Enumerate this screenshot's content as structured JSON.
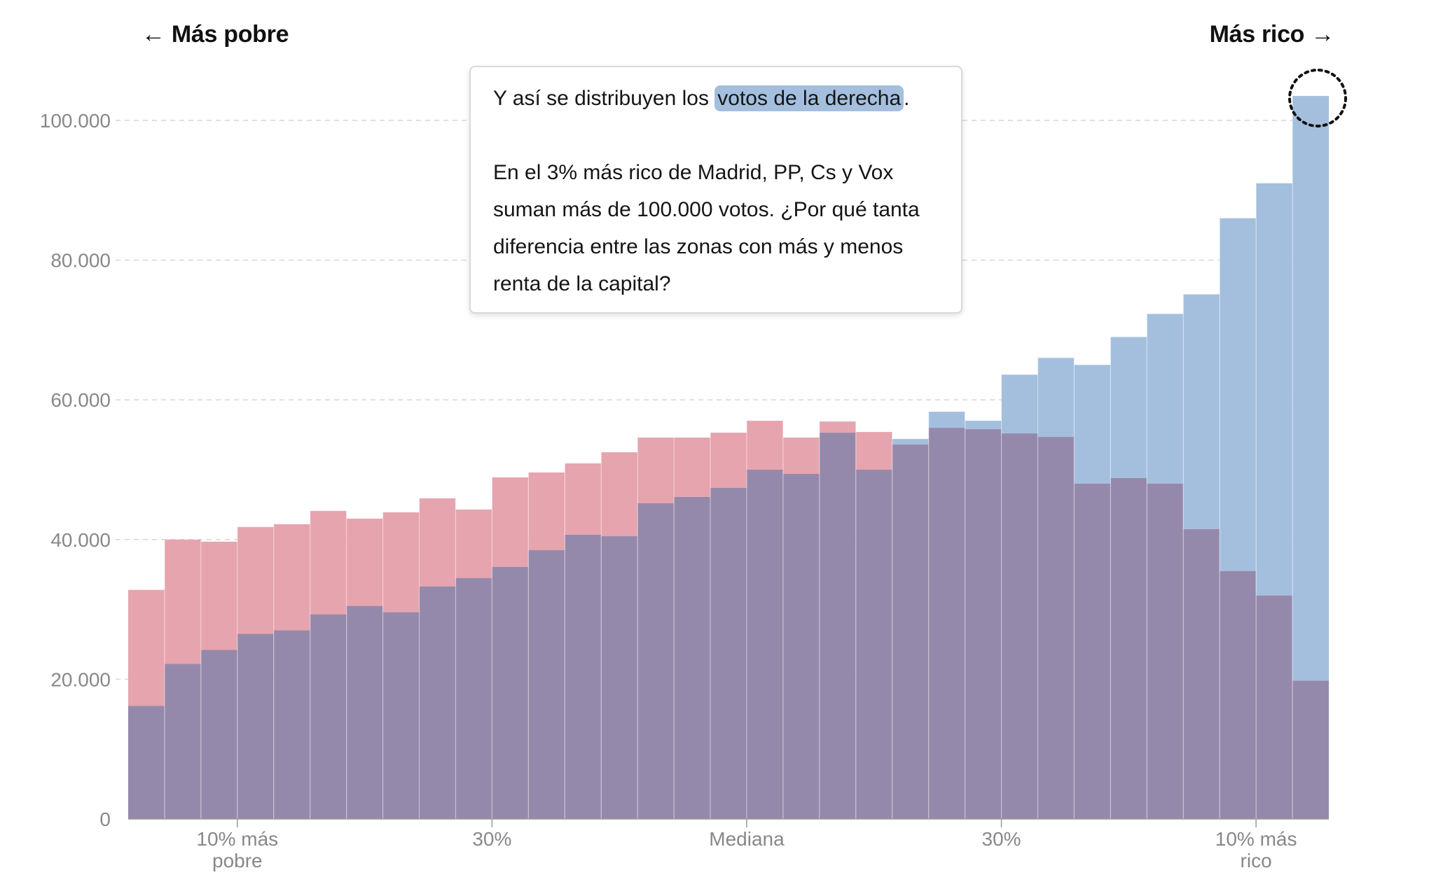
{
  "direction_labels": {
    "left": "← Más pobre",
    "right": "Más rico →"
  },
  "annotation": {
    "line1_before": "Y así se distribuyen los ",
    "line1_highlight": "votos de la derecha",
    "line1_after": ".",
    "paragraph2": "En el 3% más rico de Madrid, PP, Cs y Vox suman más de 100.000 votos. ¿Por qué tanta diferencia entre las zonas con más y menos renta de la capital?"
  },
  "colors": {
    "left_votes": "#e6a4ae",
    "right_votes": "#a4bfde",
    "overlap": "#9589ab",
    "highlight": "#a4bfde",
    "axis_text": "#888888",
    "grid": "#d6d6d6"
  },
  "chart_data": {
    "type": "bar",
    "bar_mode": "overlay",
    "bins": 33,
    "ylim": [
      0,
      100000
    ],
    "y_ticks": [
      0,
      20000,
      40000,
      60000,
      80000,
      100000
    ],
    "y_tick_labels": [
      "0",
      "20.000",
      "40.000",
      "60.000",
      "80.000",
      "100.000"
    ],
    "x_tick_labels": [
      {
        "label": "10% más\npobre",
        "after_bin": 2
      },
      {
        "label": "30%",
        "after_bin": 9
      },
      {
        "label": "Mediana",
        "after_bin": 16
      },
      {
        "label": "30%",
        "after_bin": 23
      },
      {
        "label": "10% más\nrico",
        "after_bin": 30
      }
    ],
    "grid": "horizontal dashed",
    "highlight_marker": "dotted circle on last bin",
    "series": [
      {
        "values": [
          32800,
          40000,
          39700,
          41800,
          42200,
          44100,
          43000,
          43900,
          45900,
          44300,
          48900,
          49600,
          50900,
          52500,
          54600,
          54600,
          55300,
          57000,
          54600,
          56900,
          55400,
          53600,
          56000,
          55800,
          55200,
          54700,
          48000,
          48800,
          48000,
          41500,
          35500,
          32000,
          19800
        ]
      },
      {
        "values": [
          16200,
          22200,
          24200,
          26500,
          27000,
          29300,
          30500,
          29600,
          33300,
          34500,
          36100,
          38500,
          40700,
          40500,
          45200,
          46100,
          47400,
          50000,
          49400,
          55300,
          50000,
          54400,
          58300,
          57000,
          63600,
          66000,
          65000,
          69000,
          72300,
          75100,
          86000,
          91000,
          103500
        ]
      }
    ]
  }
}
